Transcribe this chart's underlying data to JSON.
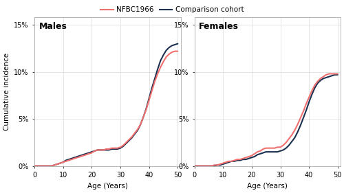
{
  "background_color": "#ffffff",
  "panel_bg": "#ffffff",
  "grid_color": "#e0e0e0",
  "nfbc_color": "#f07070",
  "comp_color": "#1c3050",
  "legend_label_nfbc": "NFBC1966",
  "legend_label_comp": "Comparison cohort",
  "ylabel": "Cumulative incidence",
  "xlabel": "Age (Years)",
  "panels": [
    "Males",
    "Females"
  ],
  "xlim": [
    0,
    51
  ],
  "ylim": [
    0,
    0.158
  ],
  "yticks": [
    0,
    0.05,
    0.1,
    0.15
  ],
  "xticks": [
    0,
    10,
    20,
    30,
    40,
    50
  ],
  "males_nfbc_x": [
    0,
    1,
    2,
    3,
    4,
    5,
    6,
    7,
    8,
    9,
    10,
    11,
    12,
    13,
    14,
    15,
    16,
    17,
    18,
    19,
    20,
    21,
    22,
    23,
    24,
    25,
    26,
    27,
    28,
    29,
    30,
    31,
    32,
    33,
    34,
    35,
    36,
    37,
    38,
    39,
    40,
    41,
    42,
    43,
    44,
    45,
    46,
    47,
    48,
    49,
    50
  ],
  "males_nfbc_y": [
    0.0,
    0.0,
    0.0,
    0.0,
    0.0,
    0.0,
    0.0,
    0.001,
    0.002,
    0.003,
    0.004,
    0.005,
    0.006,
    0.007,
    0.008,
    0.009,
    0.01,
    0.011,
    0.012,
    0.013,
    0.014,
    0.016,
    0.017,
    0.017,
    0.017,
    0.018,
    0.018,
    0.019,
    0.019,
    0.019,
    0.02,
    0.022,
    0.025,
    0.028,
    0.031,
    0.035,
    0.039,
    0.044,
    0.052,
    0.06,
    0.07,
    0.08,
    0.09,
    0.098,
    0.105,
    0.111,
    0.116,
    0.119,
    0.121,
    0.122,
    0.122
  ],
  "males_comp_x": [
    0,
    1,
    2,
    3,
    4,
    5,
    6,
    7,
    8,
    9,
    10,
    11,
    12,
    13,
    14,
    15,
    16,
    17,
    18,
    19,
    20,
    21,
    22,
    23,
    24,
    25,
    26,
    27,
    28,
    29,
    30,
    31,
    32,
    33,
    34,
    35,
    36,
    37,
    38,
    39,
    40,
    41,
    42,
    43,
    44,
    45,
    46,
    47,
    48,
    49,
    50
  ],
  "males_comp_y": [
    0.0,
    0.0,
    0.0,
    0.0,
    0.0,
    0.0,
    0.0,
    0.001,
    0.002,
    0.003,
    0.004,
    0.006,
    0.007,
    0.008,
    0.009,
    0.01,
    0.011,
    0.012,
    0.013,
    0.014,
    0.015,
    0.016,
    0.017,
    0.017,
    0.017,
    0.017,
    0.017,
    0.018,
    0.018,
    0.018,
    0.019,
    0.021,
    0.024,
    0.027,
    0.03,
    0.034,
    0.038,
    0.044,
    0.052,
    0.061,
    0.072,
    0.083,
    0.093,
    0.103,
    0.112,
    0.118,
    0.123,
    0.126,
    0.128,
    0.129,
    0.13
  ],
  "females_nfbc_x": [
    0,
    1,
    2,
    3,
    4,
    5,
    6,
    7,
    8,
    9,
    10,
    11,
    12,
    13,
    14,
    15,
    16,
    17,
    18,
    19,
    20,
    21,
    22,
    23,
    24,
    25,
    26,
    27,
    28,
    29,
    30,
    31,
    32,
    33,
    34,
    35,
    36,
    37,
    38,
    39,
    40,
    41,
    42,
    43,
    44,
    45,
    46,
    47,
    48,
    49,
    50
  ],
  "females_nfbc_y": [
    0.0,
    0.0,
    0.0,
    0.0,
    0.0,
    0.0,
    0.0,
    0.001,
    0.001,
    0.002,
    0.003,
    0.004,
    0.005,
    0.005,
    0.006,
    0.007,
    0.007,
    0.008,
    0.009,
    0.01,
    0.011,
    0.013,
    0.015,
    0.016,
    0.018,
    0.019,
    0.019,
    0.019,
    0.019,
    0.02,
    0.02,
    0.022,
    0.025,
    0.029,
    0.033,
    0.038,
    0.044,
    0.051,
    0.058,
    0.066,
    0.073,
    0.08,
    0.086,
    0.09,
    0.093,
    0.095,
    0.097,
    0.098,
    0.098,
    0.098,
    0.098
  ],
  "females_comp_x": [
    0,
    1,
    2,
    3,
    4,
    5,
    6,
    7,
    8,
    9,
    10,
    11,
    12,
    13,
    14,
    15,
    16,
    17,
    18,
    19,
    20,
    21,
    22,
    23,
    24,
    25,
    26,
    27,
    28,
    29,
    30,
    31,
    32,
    33,
    34,
    35,
    36,
    37,
    38,
    39,
    40,
    41,
    42,
    43,
    44,
    45,
    46,
    47,
    48,
    49,
    50
  ],
  "females_comp_y": [
    0.0,
    0.0,
    0.0,
    0.0,
    0.0,
    0.0,
    0.0,
    0.0,
    0.001,
    0.001,
    0.002,
    0.003,
    0.004,
    0.005,
    0.005,
    0.006,
    0.006,
    0.007,
    0.007,
    0.008,
    0.009,
    0.01,
    0.012,
    0.013,
    0.014,
    0.015,
    0.015,
    0.015,
    0.015,
    0.015,
    0.016,
    0.017,
    0.019,
    0.022,
    0.026,
    0.03,
    0.036,
    0.043,
    0.051,
    0.059,
    0.068,
    0.076,
    0.083,
    0.088,
    0.091,
    0.093,
    0.094,
    0.095,
    0.096,
    0.097,
    0.097
  ],
  "line_width": 1.5,
  "tick_fontsize": 7,
  "label_fontsize": 7.5,
  "panel_title_fontsize": 9
}
